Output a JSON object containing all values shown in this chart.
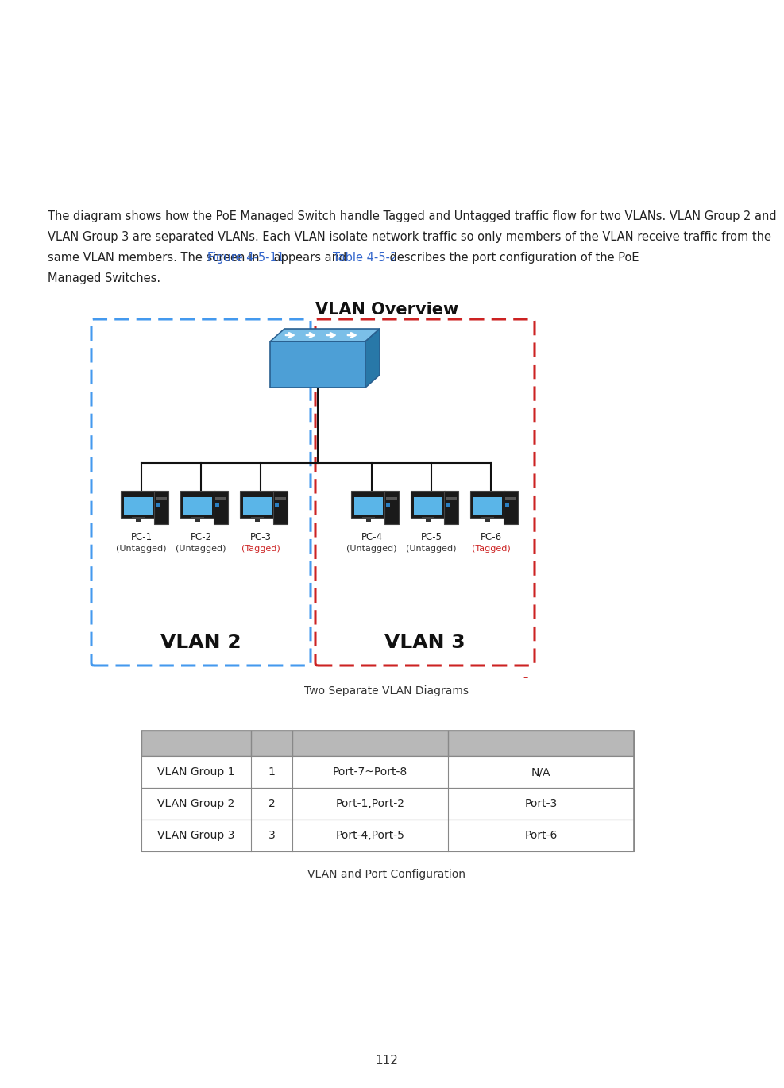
{
  "background_color": "#ffffff",
  "line1": "The diagram shows how the PoE Managed Switch handle Tagged and Untagged traffic flow for two VLANs. VLAN Group 2 and",
  "line2": "VLAN Group 3 are separated VLANs. Each VLAN isolate network traffic so only members of the VLAN receive traffic from the",
  "line3_pre": "same VLAN members. The screen in ",
  "line3_link1": "Figure 4-5-11",
  "line3_mid": " appears and ",
  "line3_link2": "Table 4-5-2",
  "line3_post": " describes the port configuration of the PoE",
  "line4": "Managed Switches.",
  "diagram_title": "VLAN Overview",
  "vlan2_label": "VLAN 2",
  "vlan3_label": "VLAN 3",
  "vlan2_border_color": "#4499ee",
  "vlan3_border_color": "#cc2222",
  "pc_labels": [
    "PC-1",
    "PC-2",
    "PC-3",
    "PC-4",
    "PC-5",
    "PC-6"
  ],
  "pc_sublabels": [
    "(Untagged)",
    "(Untagged)",
    "(Tagged)",
    "(Untagged)",
    "(Untagged)",
    "(Tagged)"
  ],
  "pc_sublabel_colors": [
    "#333333",
    "#333333",
    "#cc2222",
    "#333333",
    "#333333",
    "#cc2222"
  ],
  "caption1": "Two Separate VLAN Diagrams",
  "table_rows": [
    [
      "VLAN Group 1",
      "1",
      "Port-7~Port-8",
      "N/A"
    ],
    [
      "VLAN Group 2",
      "2",
      "Port-1,Port-2",
      "Port-3"
    ],
    [
      "VLAN Group 3",
      "3",
      "Port-4,Port-5",
      "Port-6"
    ]
  ],
  "caption2": "VLAN and Port Configuration",
  "page_number": "112",
  "link_color": "#3366cc",
  "text_color": "#222222",
  "table_header_bg": "#b8b8b8",
  "table_border_color": "#888888"
}
